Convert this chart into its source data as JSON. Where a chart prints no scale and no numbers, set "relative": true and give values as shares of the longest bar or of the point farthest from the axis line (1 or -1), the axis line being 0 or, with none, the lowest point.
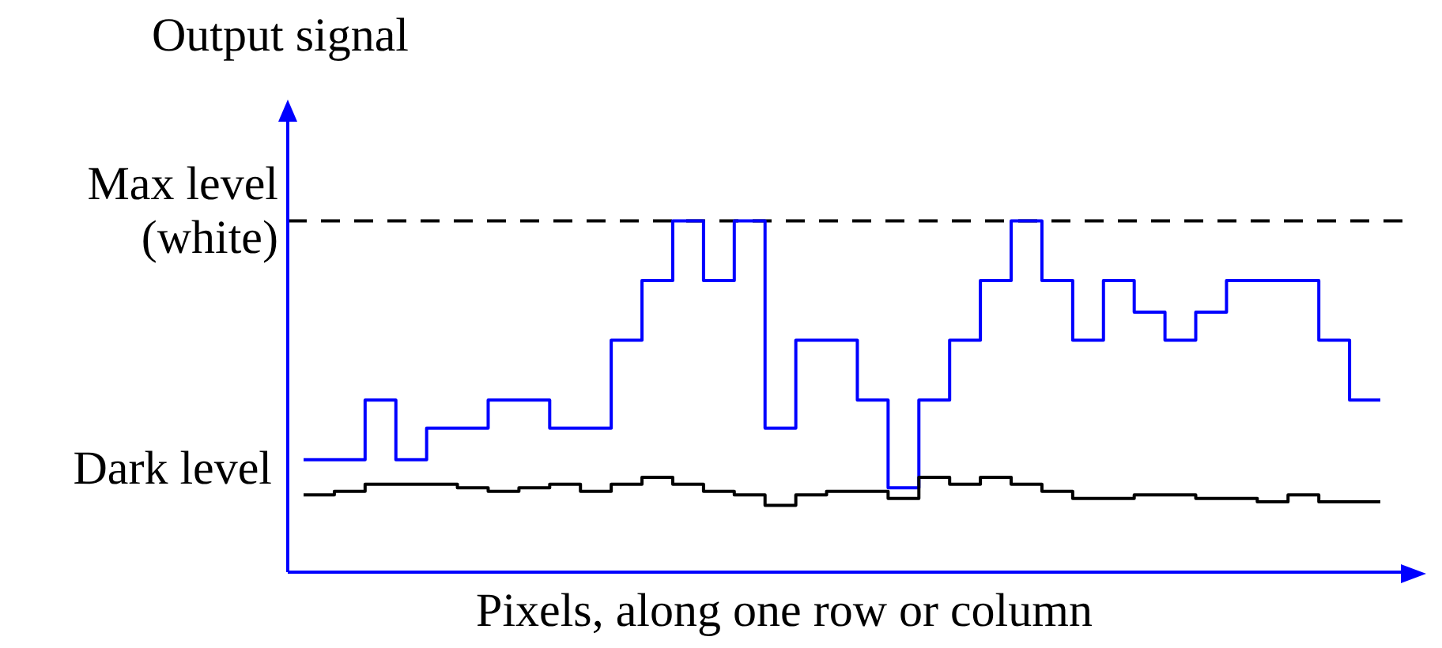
{
  "chart_data": {
    "type": "step",
    "ylabel": "Output signal",
    "xlabel": "Pixels, along one row or column",
    "relative": true,
    "categories": [
      null,
      null,
      null,
      null,
      null,
      null,
      null,
      null,
      null,
      null,
      null,
      null,
      null,
      null,
      null,
      null,
      null,
      null,
      null,
      null,
      null,
      null,
      null,
      null,
      null,
      null,
      null,
      null,
      null,
      null,
      null,
      null,
      null,
      null,
      null,
      null
    ],
    "series": [
      {
        "color": "#0000ff",
        "values": [
          0.32,
          0.32,
          0.49,
          0.32,
          0.41,
          0.41,
          0.49,
          0.49,
          0.41,
          0.41,
          0.66,
          0.83,
          1.0,
          0.83,
          1.0,
          0.41,
          0.66,
          0.66,
          0.49,
          0.24,
          0.49,
          0.66,
          0.83,
          1.0,
          0.83,
          0.66,
          0.83,
          0.74,
          0.66,
          0.74,
          0.83,
          0.83,
          0.83,
          0.66,
          0.49,
          0.49
        ]
      },
      {
        "name": "Dark level",
        "color": "#000000",
        "values": [
          0.22,
          0.23,
          0.25,
          0.25,
          0.25,
          0.24,
          0.23,
          0.24,
          0.25,
          0.23,
          0.25,
          0.27,
          0.25,
          0.23,
          0.22,
          0.19,
          0.22,
          0.23,
          0.23,
          0.21,
          0.27,
          0.25,
          0.27,
          0.25,
          0.23,
          0.21,
          0.21,
          0.22,
          0.22,
          0.21,
          0.21,
          0.2,
          0.22,
          0.2,
          0.2,
          0.2
        ]
      }
    ],
    "ref_lines": [
      {
        "axis": "y",
        "value": 1,
        "label": "Max level (white)",
        "color": "#000000",
        "line_style": "dashed"
      }
    ]
  }
}
